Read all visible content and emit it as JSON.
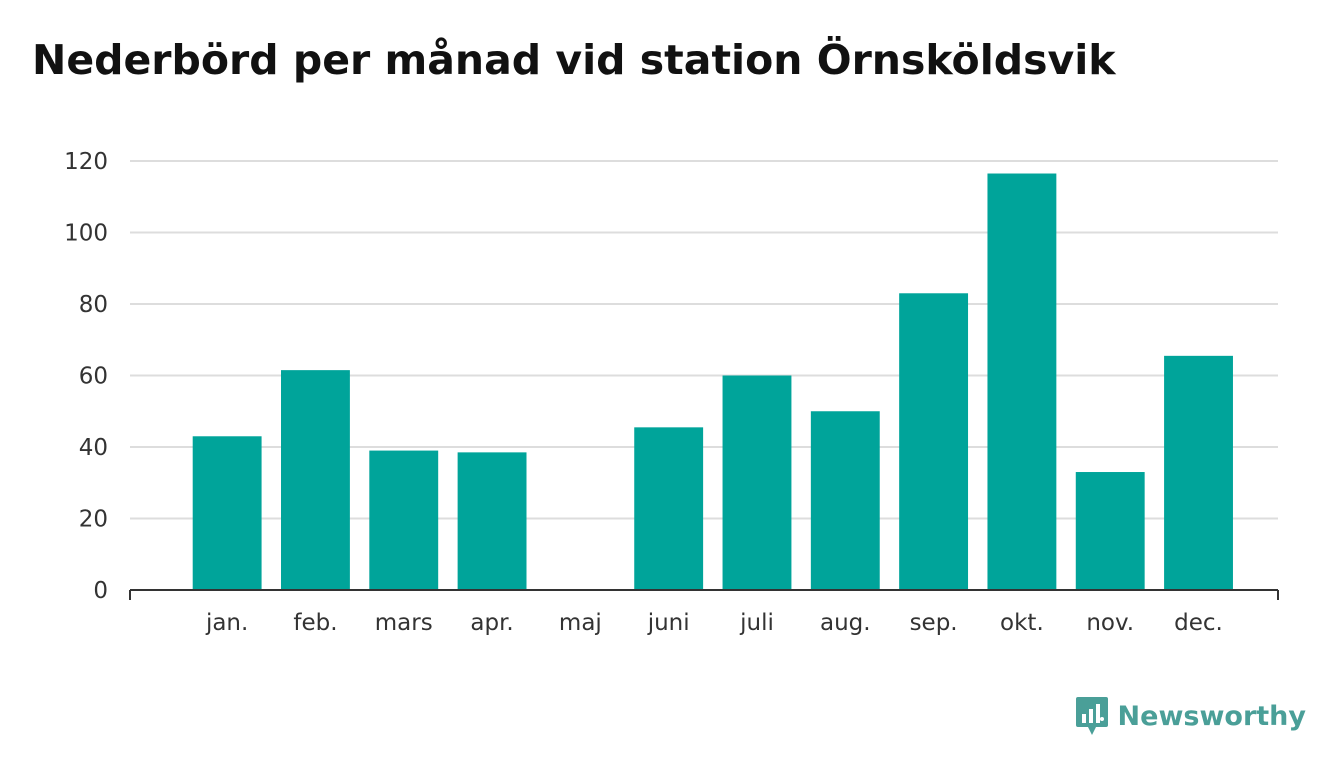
{
  "title": "Nederbörd per månad vid station Örnsköldsvik",
  "brand": {
    "name": "Newsworthy",
    "color": "#4a9f98"
  },
  "chart_data": {
    "type": "bar",
    "categories": [
      "jan.",
      "feb.",
      "mars",
      "apr.",
      "maj",
      "juni",
      "juli",
      "aug.",
      "sep.",
      "okt.",
      "nov.",
      "dec."
    ],
    "values": [
      43,
      61.5,
      39,
      38.5,
      null,
      45.5,
      60,
      50,
      83,
      116.5,
      33,
      65.5
    ],
    "title": "Nederbörd per månad vid station Örnsköldsvik",
    "xlabel": "",
    "ylabel": "",
    "ylim": [
      0,
      120
    ],
    "yticks": [
      0,
      20,
      40,
      60,
      80,
      100,
      120
    ],
    "grid": true,
    "legend": "none",
    "bar_color": "#00a49a"
  }
}
